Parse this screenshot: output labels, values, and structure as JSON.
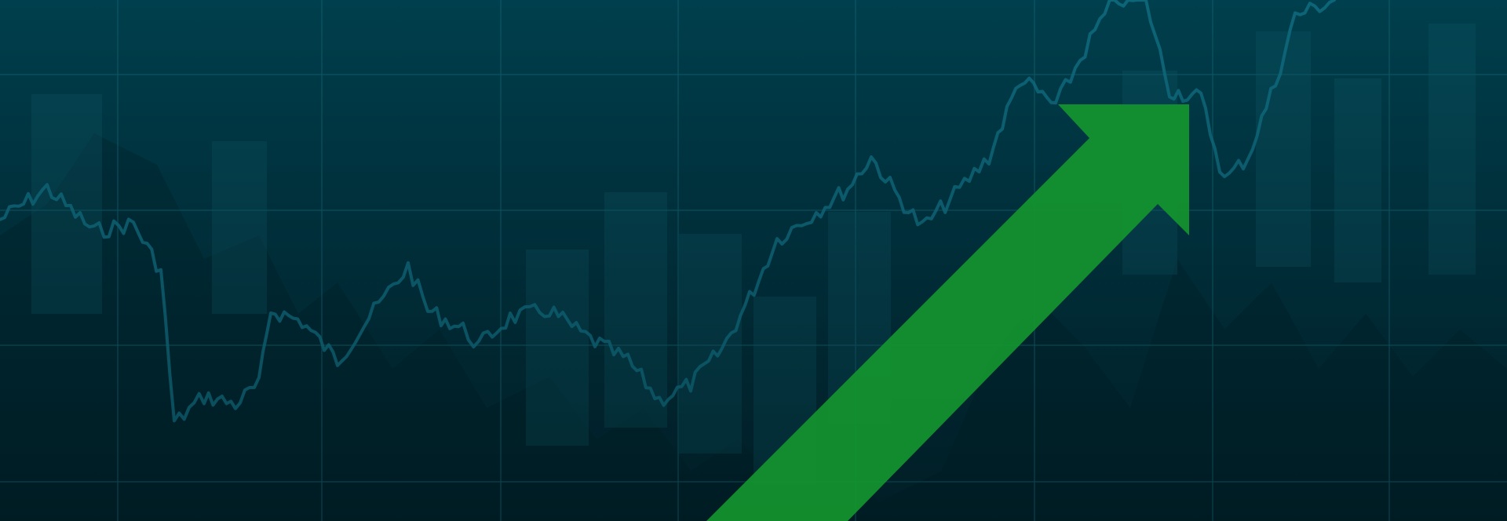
{
  "banner": {
    "theme": "rising stock market chart with upward arrow",
    "colors": {
      "background_top": "#003f4d",
      "background_bottom": "#012732",
      "grid": "#0e5a68",
      "price_line": "#0f6c80",
      "candles": "#0b5664",
      "arrow": "#14952f"
    },
    "icons": {
      "trend": "upward-trend-arrow-icon"
    }
  }
}
